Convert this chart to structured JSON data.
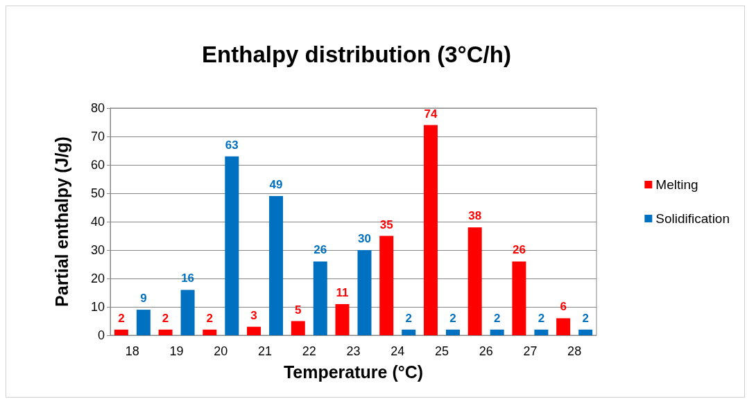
{
  "chart_data": {
    "type": "bar",
    "title": "Enthalpy distribution (3°C/h)",
    "xlabel": "Temperature (°C)",
    "ylabel": "Partial enthalpy (J/g)",
    "categories": [
      "18",
      "19",
      "20",
      "21",
      "22",
      "23",
      "24",
      "25",
      "26",
      "27",
      "28"
    ],
    "series": [
      {
        "name": "Melting",
        "color": "#ff0000",
        "values": [
          2,
          2,
          2,
          3,
          5,
          11,
          35,
          74,
          38,
          26,
          6
        ]
      },
      {
        "name": "Solidification",
        "color": "#0070c0",
        "values": [
          9,
          16,
          63,
          49,
          26,
          30,
          2,
          2,
          2,
          2,
          2
        ]
      }
    ],
    "ylim": [
      0,
      80
    ],
    "yticks": [
      0,
      10,
      20,
      30,
      40,
      50,
      60,
      70,
      80
    ],
    "grid": "y",
    "legend": "right",
    "data_labels": true
  }
}
